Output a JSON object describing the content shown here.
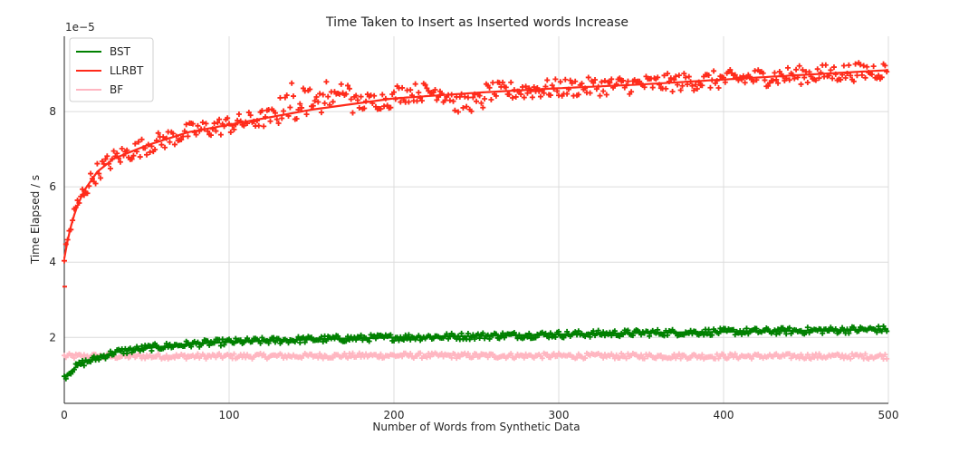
{
  "chart_data": {
    "type": "scatter",
    "title": "Time Taken to Insert as Inserted words Increase",
    "xlabel": "Number of Words from Synthetic Data",
    "ylabel": "Time Elapsed / s",
    "offset_text": "1e−5",
    "xlim": [
      0,
      500
    ],
    "ylim": [
      0.25,
      10.0
    ],
    "y_scale_factor": 1e-05,
    "xticks": [
      0,
      100,
      200,
      300,
      400,
      500
    ],
    "xtick_labels": [
      "0",
      "100",
      "200",
      "300",
      "400",
      "500"
    ],
    "yticks": [
      2,
      4,
      6,
      8
    ],
    "ytick_labels": [
      "2",
      "4",
      "6",
      "8"
    ],
    "grid": true,
    "legend_position": "top-left",
    "n_points": 500,
    "marker": "plus",
    "series": [
      {
        "name": "BST",
        "color": "#008000",
        "trend": "fitted curve",
        "points_x": [
          0,
          5,
          10,
          20,
          30,
          50,
          75,
          100,
          150,
          200,
          250,
          300,
          350,
          400,
          450,
          500
        ],
        "points_y": [
          0.95,
          1.15,
          1.3,
          1.45,
          1.6,
          1.72,
          1.82,
          1.88,
          1.95,
          2.0,
          2.04,
          2.08,
          2.12,
          2.15,
          2.18,
          2.22
        ]
      },
      {
        "name": "LLRBT",
        "color": "#ff2a1a",
        "trend": "fitted curve",
        "first_point": [
          0,
          3.35
        ],
        "points_x": [
          0,
          3,
          7,
          12,
          20,
          30,
          50,
          75,
          100,
          150,
          200,
          250,
          300,
          350,
          400,
          450,
          500
        ],
        "points_y": [
          4.1,
          4.8,
          5.4,
          5.9,
          6.4,
          6.75,
          7.1,
          7.45,
          7.65,
          8.05,
          8.35,
          8.5,
          8.62,
          8.72,
          8.85,
          8.98,
          9.1
        ]
      },
      {
        "name": "BF",
        "color": "#ffb6c1",
        "trend": "flat",
        "points_x": [
          0,
          100,
          200,
          300,
          400,
          500
        ],
        "points_y": [
          1.5,
          1.5,
          1.52,
          1.51,
          1.5,
          1.5
        ]
      }
    ]
  }
}
